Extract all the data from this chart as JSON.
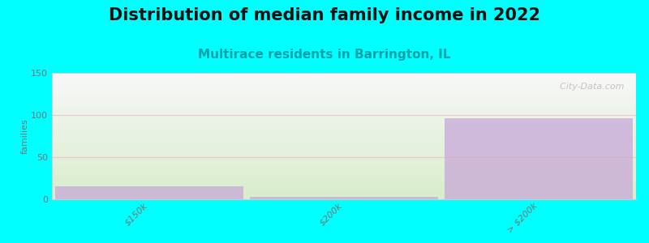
{
  "title": "Distribution of median family income in 2022",
  "subtitle": "Multirace residents in Barrington, IL",
  "categories": [
    "$150k",
    "$200k",
    "> $200k"
  ],
  "values": [
    15,
    3,
    96
  ],
  "bar_color": "#c8a8d8",
  "bar_alpha": 0.75,
  "background_color": "#00ffff",
  "plot_bg_gradient_top": "#f8f8f8",
  "plot_bg_gradient_bottom": "#d8edcc",
  "ylabel": "families",
  "ylim": [
    0,
    150
  ],
  "yticks": [
    0,
    50,
    100,
    150
  ],
  "grid_color": "#e8c8d0",
  "watermark": "  City-Data.com",
  "title_fontsize": 15,
  "subtitle_fontsize": 11,
  "subtitle_color": "#00a0a8",
  "tick_label_color": "#777777"
}
